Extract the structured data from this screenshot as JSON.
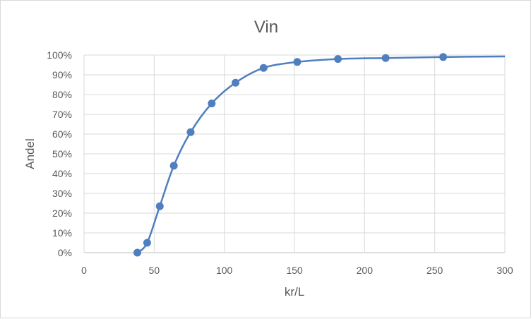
{
  "chart_data": {
    "type": "scatter",
    "title": "Vin",
    "xlabel": "kr/L",
    "ylabel": "Andel",
    "xlim": [
      0,
      300
    ],
    "ylim": [
      0,
      1
    ],
    "x_ticks": [
      "0",
      "50",
      "100",
      "150",
      "200",
      "250",
      "300"
    ],
    "y_ticks": [
      "0%",
      "10%",
      "20%",
      "30%",
      "40%",
      "50%",
      "60%",
      "70%",
      "80%",
      "90%",
      "100%"
    ],
    "grid": true,
    "smooth_line": true,
    "series": [
      {
        "color": "#4f7fbf",
        "x": [
          38,
          45,
          54,
          64,
          76,
          91,
          108,
          128,
          152,
          181,
          215,
          256
        ],
        "y": [
          0.0,
          0.05,
          0.235,
          0.44,
          0.61,
          0.755,
          0.86,
          0.935,
          0.965,
          0.98,
          0.985,
          0.99
        ],
        "line_end": {
          "x": 300,
          "y": 0.993
        }
      }
    ]
  }
}
